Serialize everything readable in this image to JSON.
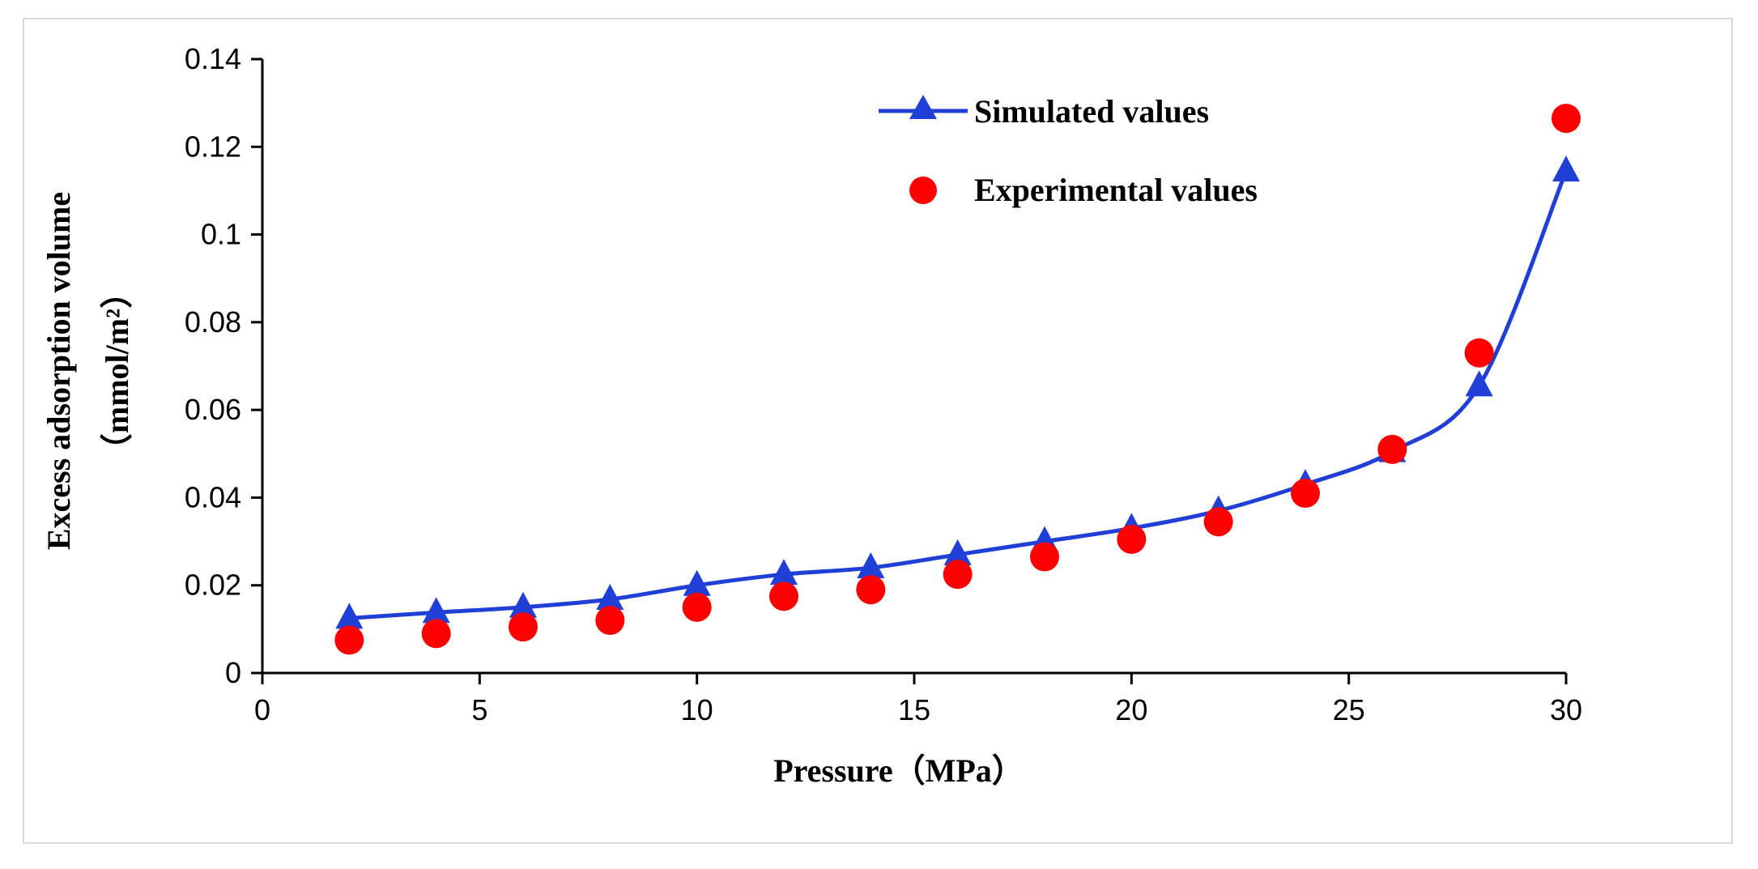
{
  "chart_data": {
    "type": "line",
    "title": "",
    "xlabel": "Pressure（MPa）",
    "ylabel_line1": "Excess adsorption volume",
    "ylabel_line2": "（mmol/m²）",
    "xlim": [
      0,
      30
    ],
    "ylim": [
      0,
      0.14
    ],
    "xticks": [
      0,
      5,
      10,
      15,
      20,
      25,
      30
    ],
    "xtick_labels": [
      "0",
      "5",
      "10",
      "15",
      "20",
      "25",
      "30"
    ],
    "yticks": [
      0,
      0.02,
      0.04,
      0.06,
      0.08,
      0.1,
      0.12,
      0.14
    ],
    "ytick_labels": [
      "0",
      "0.02",
      "0.04",
      "0.06",
      "0.08",
      "0.1",
      "0.12",
      "0.14"
    ],
    "grid": false,
    "legend_position": "top-right",
    "series": [
      {
        "name": "Simulated values",
        "style": "line-triangle",
        "color": "#1f3fd6",
        "x": [
          2,
          4,
          6,
          8,
          10,
          12,
          14,
          16,
          18,
          20,
          22,
          24,
          26,
          28,
          30
        ],
        "y": [
          0.0125,
          0.0138,
          0.015,
          0.0168,
          0.02,
          0.0225,
          0.024,
          0.027,
          0.03,
          0.033,
          0.037,
          0.043,
          0.0505,
          0.0655,
          0.1145
        ]
      },
      {
        "name": "Experimental values",
        "style": "marker-circle",
        "color": "#ff0000",
        "x": [
          2,
          4,
          6,
          8,
          10,
          12,
          14,
          16,
          18,
          20,
          22,
          24,
          26,
          28,
          30
        ],
        "y": [
          0.0075,
          0.009,
          0.0105,
          0.012,
          0.015,
          0.0175,
          0.019,
          0.0225,
          0.0265,
          0.0305,
          0.0345,
          0.041,
          0.051,
          0.073,
          0.1265
        ]
      }
    ]
  }
}
